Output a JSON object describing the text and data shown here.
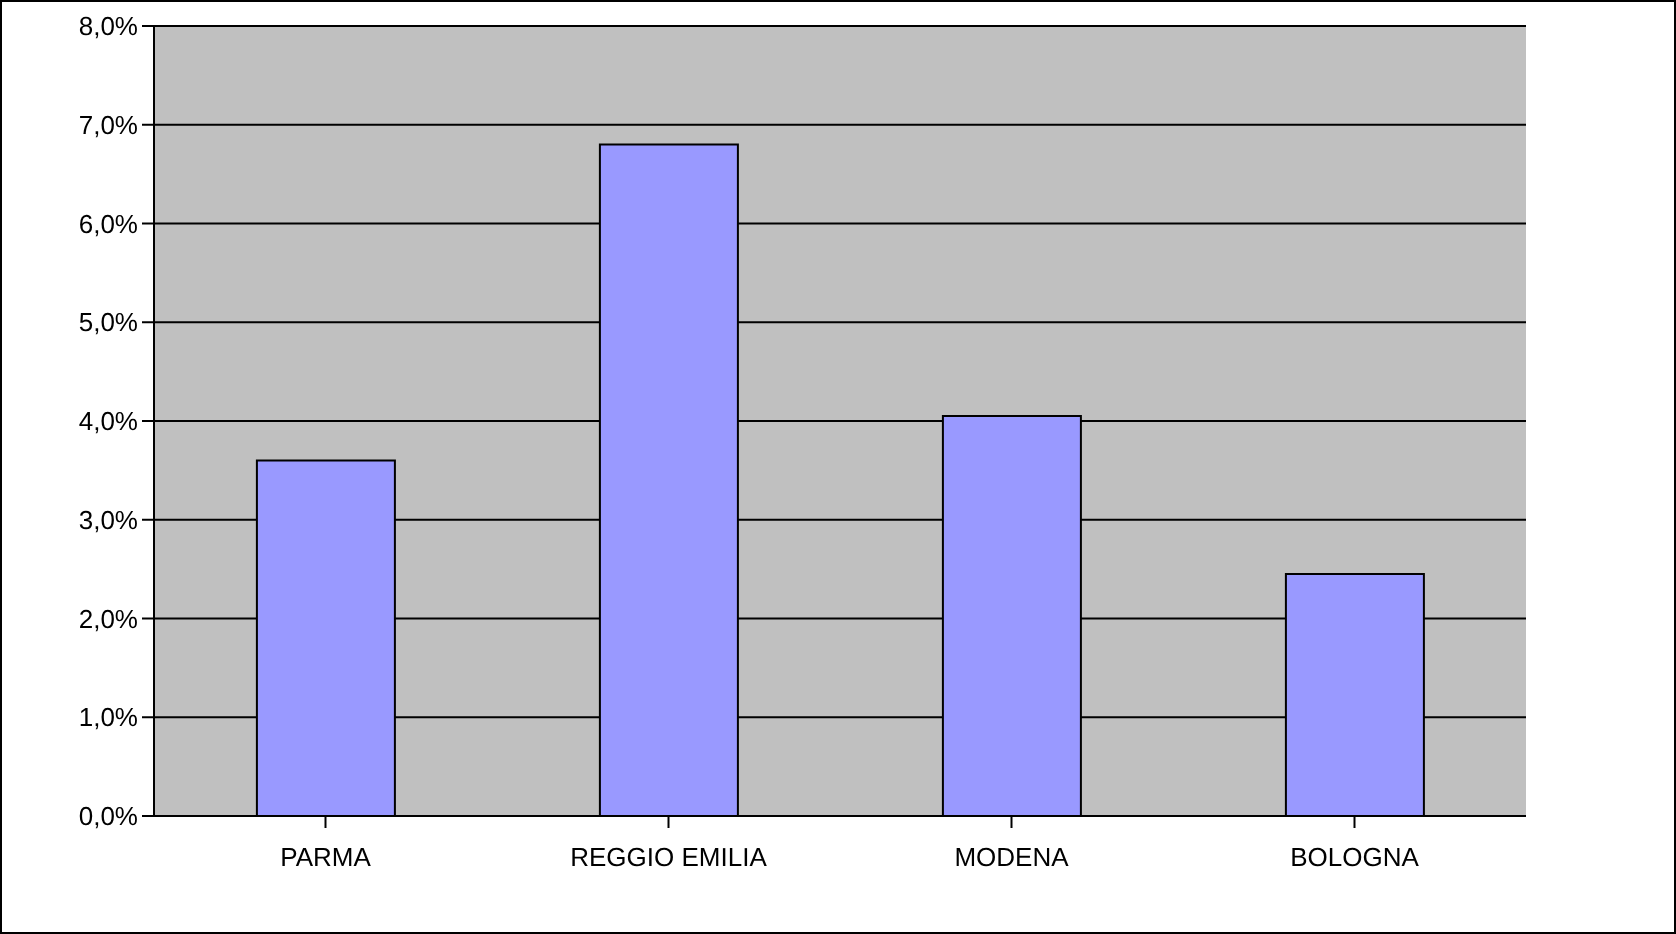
{
  "chart_data": {
    "type": "bar",
    "categories": [
      "PARMA",
      "REGGIO EMILIA",
      "MODENA",
      "BOLOGNA"
    ],
    "values": [
      3.6,
      6.8,
      4.05,
      2.45
    ],
    "color": "#9999ff",
    "ylim": [
      0,
      8
    ],
    "yticks": [
      {
        "value": 0,
        "label": "0,0%"
      },
      {
        "value": 1,
        "label": "1,0%"
      },
      {
        "value": 2,
        "label": "2,0%"
      },
      {
        "value": 3,
        "label": "3,0%"
      },
      {
        "value": 4,
        "label": "4,0%"
      },
      {
        "value": 5,
        "label": "5,0%"
      },
      {
        "value": 6,
        "label": "6,0%"
      },
      {
        "value": 7,
        "label": "7,0%"
      },
      {
        "value": 8,
        "label": "8,0%"
      }
    ],
    "grid": "y"
  }
}
